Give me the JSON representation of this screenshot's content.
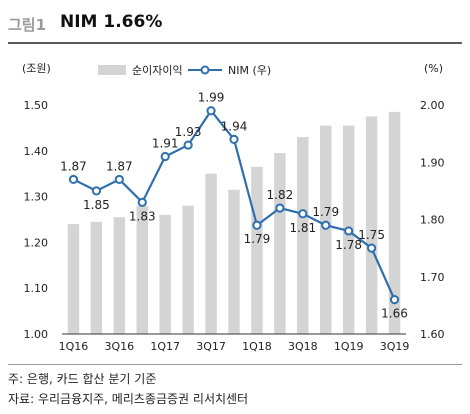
{
  "header": {
    "figure_label": "그림1",
    "title": "NIM 1.66%"
  },
  "chart_data": {
    "type": "bar+line",
    "categories": [
      "1Q16",
      "2Q16",
      "3Q16",
      "4Q16",
      "1Q17",
      "2Q17",
      "3Q17",
      "4Q17",
      "1Q18",
      "2Q18",
      "3Q18",
      "4Q18",
      "1Q19",
      "2Q19",
      "3Q19"
    ],
    "x_tick_labels": [
      "1Q16",
      "3Q16",
      "1Q17",
      "3Q17",
      "1Q18",
      "3Q18",
      "1Q19",
      "3Q19"
    ],
    "left_axis": {
      "unit_label": "(조원)",
      "min": 1.0,
      "max": 1.5,
      "ticks": [
        "1.00",
        "1.10",
        "1.20",
        "1.30",
        "1.40",
        "1.50"
      ]
    },
    "right_axis": {
      "unit_label": "(%)",
      "min": 1.6,
      "max": 2.0,
      "ticks": [
        "1.60",
        "1.70",
        "1.80",
        "1.90",
        "2.00"
      ]
    },
    "series": [
      {
        "name": "순이자이익",
        "type": "bar",
        "axis": "left",
        "color": "#d4d4d4",
        "values": [
          1.24,
          1.245,
          1.255,
          1.28,
          1.26,
          1.28,
          1.35,
          1.315,
          1.365,
          1.395,
          1.43,
          1.455,
          1.455,
          1.475,
          1.485
        ]
      },
      {
        "name": "NIM (우)",
        "type": "line",
        "axis": "right",
        "color": "#2f6fae",
        "values": [
          1.87,
          1.85,
          1.87,
          1.83,
          1.91,
          1.93,
          1.99,
          1.94,
          1.79,
          1.82,
          1.81,
          1.79,
          1.78,
          1.75,
          1.66
        ],
        "labels": [
          "1.87",
          "1.85",
          "1.87",
          "1.83",
          "1.91",
          "1.93",
          "1.99",
          "1.94",
          "1.79",
          "1.82",
          "1.81",
          "1.79",
          "1.78",
          "1.75",
          "1.66"
        ]
      }
    ],
    "legend_position": "top"
  },
  "footer": {
    "note": "주: 은행, 카드 합산 분기 기준",
    "source": "자료: 우리금융지주, 메리츠종금증권 리서치센터"
  }
}
